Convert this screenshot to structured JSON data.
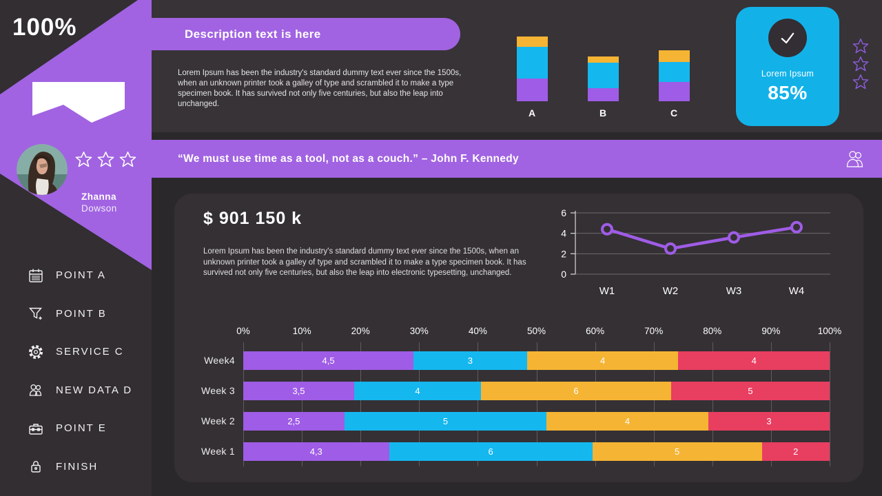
{
  "sidebar": {
    "progress": "100%",
    "profile": {
      "first_name": "Zhanna",
      "last_name": "Dowson",
      "rating_stars": 3
    },
    "menu": [
      {
        "icon": "calendar-icon",
        "label": "POINT A"
      },
      {
        "icon": "funnel-icon",
        "label": "POINT B"
      },
      {
        "icon": "gear-icon",
        "label": "SERVICE C"
      },
      {
        "icon": "people-icon",
        "label": "NEW DATA D"
      },
      {
        "icon": "toolbox-icon",
        "label": "POINT E"
      },
      {
        "icon": "lock-icon",
        "label": "FINISH"
      }
    ]
  },
  "top_panel": {
    "pill_title": "Description text is here",
    "paragraph": "Lorem Ipsum has been the industry's standard dummy text ever since the 1500s, when an unknown printer took a galley of type and scrambled it to make a type specimen book. It has survived not only five centuries, but also the leap into unchanged.",
    "score_card": {
      "icon": "check-icon",
      "label": "Lorem Ipsum",
      "value": "85%"
    },
    "decor_stars": 3
  },
  "quote_banner": {
    "quote": "“We must use time as a tool, not as a couch.”",
    "author": "– John F. Kennedy",
    "icon": "users-icon"
  },
  "main_card": {
    "headline": "$ 901 150 k",
    "paragraph": "Lorem Ipsum has been the industry's standard dummy text ever since the 1500s, when an unknown printer took a galley of type and scrambled it to make a type specimen book. It has survived not only five centuries, but also the leap into electronic typesetting, unchanged."
  },
  "colors": {
    "purple": "#a163e2",
    "chart_purple": "#9f5ce6",
    "cyan": "#15b7ef",
    "card_cyan": "#12b2e9",
    "yellow": "#f5b433",
    "red": "#e83e60",
    "star_purple": "#8b5ad6",
    "grid_gray": "#6e6a6e"
  },
  "chart_data": [
    {
      "id": "mini_stacked_bar",
      "type": "bar",
      "stacked": true,
      "categories": [
        "A",
        "B",
        "C"
      ],
      "series": [
        {
          "name": "purple",
          "color": "#9f5ce6",
          "values": [
            3.3,
            1.9,
            2.8
          ]
        },
        {
          "name": "cyan",
          "color": "#15b7ef",
          "values": [
            4.6,
            3.7,
            2.9
          ]
        },
        {
          "name": "yellow",
          "color": "#f5b433",
          "values": [
            1.5,
            0.9,
            1.7
          ]
        }
      ],
      "unit": "relative-height",
      "legend": "none",
      "grid": false
    },
    {
      "id": "weekly_trend_line",
      "type": "line",
      "x": [
        "W1",
        "W2",
        "W3",
        "W4"
      ],
      "values": [
        4.4,
        2.5,
        3.6,
        4.6
      ],
      "ylim": [
        0,
        6
      ],
      "yticks": [
        0,
        2,
        4,
        6
      ],
      "color": "#9f5ce6",
      "marker": "open-circle",
      "grid": true,
      "legend": "none"
    },
    {
      "id": "weekly_stacked_hbar",
      "type": "bar",
      "orientation": "horizontal",
      "stacked": true,
      "normalized_to_100pct": true,
      "categories": [
        "Week4",
        "Week 3",
        "Week 2",
        "Week 1"
      ],
      "series": [
        {
          "name": "purple",
          "color": "#9f5ce6",
          "values": [
            4.5,
            3.5,
            2.5,
            4.3
          ],
          "labels": [
            "4,5",
            "3,5",
            "2,5",
            "4,3"
          ]
        },
        {
          "name": "cyan",
          "color": "#15b7ef",
          "values": [
            3,
            4,
            5,
            6
          ],
          "labels": [
            "3",
            "4",
            "5",
            "6"
          ]
        },
        {
          "name": "yellow",
          "color": "#f5b433",
          "values": [
            4,
            6,
            4,
            5
          ],
          "labels": [
            "4",
            "6",
            "4",
            "5"
          ]
        },
        {
          "name": "red",
          "color": "#e83e60",
          "values": [
            4,
            5,
            3,
            2
          ],
          "labels": [
            "4",
            "5",
            "3",
            "2"
          ]
        }
      ],
      "xticks": [
        "0%",
        "10%",
        "20%",
        "30%",
        "40%",
        "50%",
        "60%",
        "70%",
        "80%",
        "90%",
        "100%"
      ],
      "grid": true,
      "legend": "none"
    }
  ]
}
